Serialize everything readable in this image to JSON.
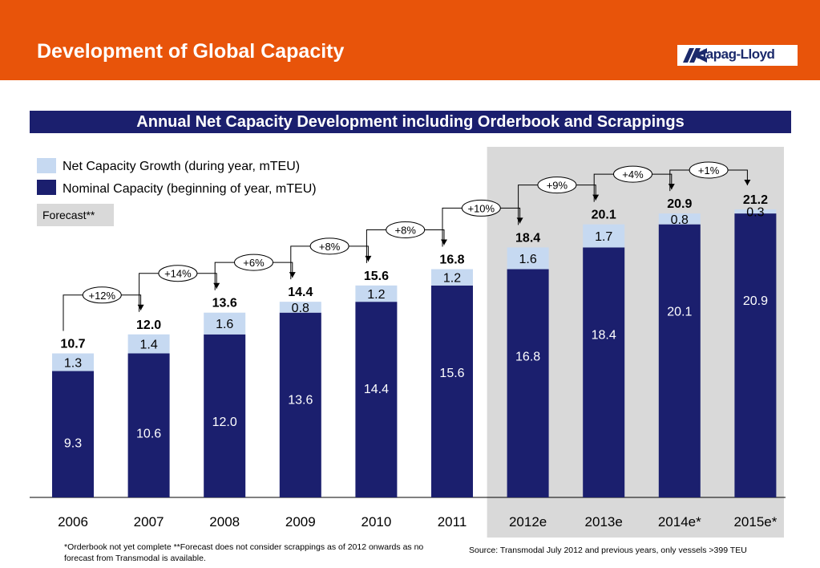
{
  "header": {
    "title": "Development of Global Capacity",
    "logo_text": "Hapag-Lloyd",
    "background": "#E8540A"
  },
  "subtitle": "Annual Net Capacity Development including Orderbook and Scrappings",
  "footnote": "*Orderbook not yet complete  **Forecast does not consider scrappings as of 2012 onwards as no forecast from Transmodal is available.",
  "source": "Source: Transmodal July 2012 and previous years, only vessels >399 TEU",
  "chart_data": {
    "type": "bar",
    "stacked": true,
    "categories": [
      "2006",
      "2007",
      "2008",
      "2009",
      "2010",
      "2011",
      "2012e",
      "2013e",
      "2014e*",
      "2015e*"
    ],
    "series": [
      {
        "name": "Nominal Capacity (beginning of year, mTEU)",
        "color": "#1B1F6E",
        "values": [
          9.3,
          10.6,
          12.0,
          13.6,
          14.4,
          15.6,
          16.8,
          18.4,
          20.1,
          20.9
        ],
        "labels": [
          "9.3",
          "10.6",
          "12.0",
          "13.6",
          "14.4",
          "15.6",
          "16.8",
          "18.4",
          "20.1",
          "20.9"
        ]
      },
      {
        "name": "Net Capacity Growth (during year, mTEU)",
        "color": "#C6D9F1",
        "values": [
          1.3,
          1.4,
          1.6,
          0.8,
          1.2,
          1.2,
          1.6,
          1.7,
          0.8,
          0.3
        ],
        "labels": [
          "1.3",
          "1.4",
          "1.6",
          "0.8",
          "1.2",
          "1.2",
          "1.6",
          "1.7",
          "0.8",
          "0.3"
        ]
      }
    ],
    "totals": [
      "10.7",
      "12.0",
      "13.6",
      "14.4",
      "15.6",
      "16.8",
      "18.4",
      "20.1",
      "20.9",
      "21.2"
    ],
    "growth_annotations": [
      "+12%",
      "+14%",
      "+6%",
      "+8%",
      "+8%",
      "+10%",
      "+9%",
      "+4%",
      "+1%"
    ],
    "forecast_label": "Forecast**",
    "forecast_start_index": 6,
    "forecast_shade_color": "#D9D9D9",
    "legend_position": "top-left",
    "grid": false
  }
}
